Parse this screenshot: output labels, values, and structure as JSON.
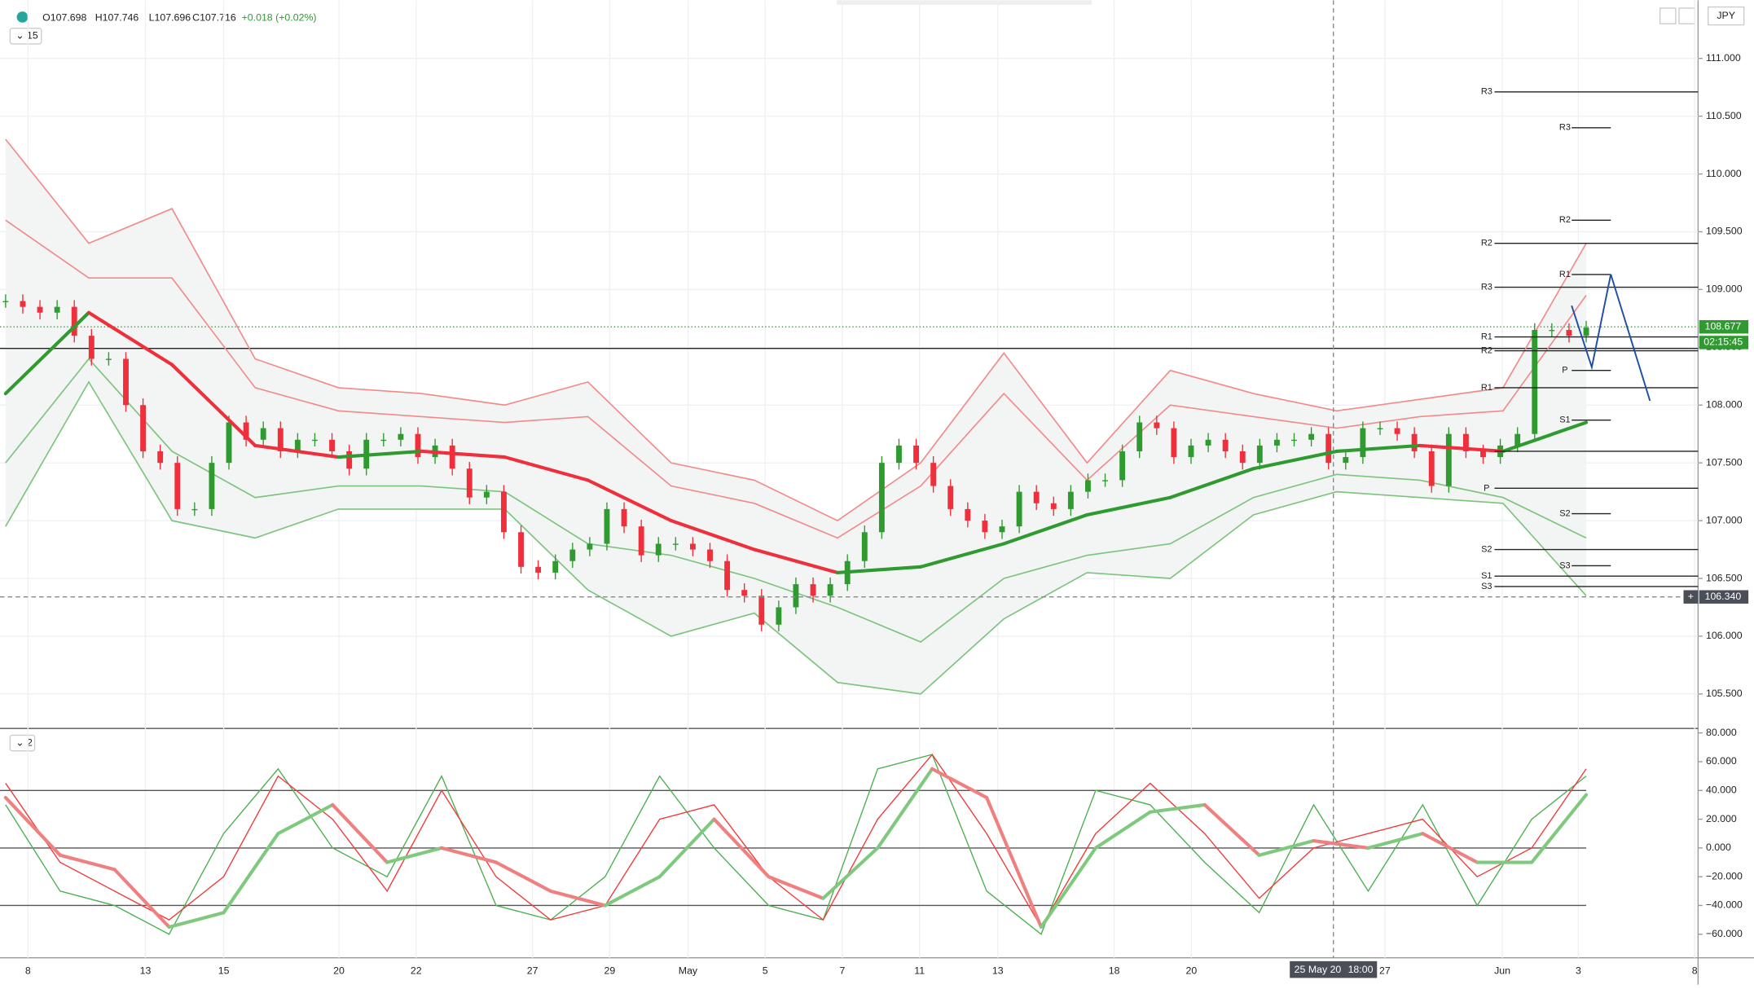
{
  "header": {
    "open": "O107.698",
    "high": "H107.746",
    "low": "L107.696",
    "close": "C107.716",
    "change": "+0.018 (+0.02%)",
    "interval": "15",
    "currency": "JPY"
  },
  "price_panel": {
    "ylim": [
      105.211,
      111.503
    ],
    "yticks": [
      {
        "value": 111,
        "label": "111.000"
      },
      {
        "value": 110.5,
        "label": "110.500"
      },
      {
        "value": 110,
        "label": "110.000"
      },
      {
        "value": 109.5,
        "label": "109.500"
      },
      {
        "value": 109,
        "label": "109.000"
      },
      {
        "value": 108.5,
        "label": "108.500"
      },
      {
        "value": 108,
        "label": "108.000"
      },
      {
        "value": 107.5,
        "label": "107.500"
      },
      {
        "value": 107,
        "label": "107.000"
      },
      {
        "value": 106.5,
        "label": "106.500"
      },
      {
        "value": 106,
        "label": "106.000"
      },
      {
        "value": 105.5,
        "label": "105.500"
      }
    ],
    "up_color": "#2f9a2f",
    "down_color": "#ef2f3c",
    "closes": [
      108.9,
      108.85,
      108.8,
      108.85,
      108.6,
      108.4,
      108.4,
      108.0,
      107.6,
      107.5,
      107.1,
      107.1,
      107.5,
      107.85,
      107.7,
      107.8,
      107.6,
      107.7,
      107.7,
      107.6,
      107.45,
      107.7,
      107.7,
      107.75,
      107.55,
      107.65,
      107.45,
      107.2,
      107.25,
      106.9,
      106.6,
      106.55,
      106.65,
      106.75,
      106.8,
      107.1,
      106.95,
      106.7,
      106.8,
      106.8,
      106.75,
      106.65,
      106.4,
      106.35,
      106.1,
      106.25,
      106.45,
      106.35,
      106.45,
      106.65,
      106.9,
      107.5,
      107.65,
      107.5,
      107.3,
      107.1,
      107.0,
      106.9,
      106.95,
      107.25,
      107.15,
      107.1,
      107.25,
      107.35,
      107.35,
      107.6,
      107.85,
      107.8,
      107.55,
      107.65,
      107.7,
      107.6,
      107.5,
      107.65,
      107.7,
      107.7,
      107.75,
      107.5,
      107.55,
      107.8,
      107.8,
      107.75,
      107.6,
      107.3,
      107.75,
      107.6,
      107.55,
      107.65,
      107.75,
      108.65,
      108.65,
      108.6,
      108.67
    ],
    "ma": [
      108.1,
      108.8,
      108.35,
      107.65,
      107.55,
      107.6,
      107.55,
      107.35,
      107.0,
      106.75,
      106.55,
      106.6,
      106.8,
      107.05,
      107.2,
      107.45,
      107.6,
      107.65,
      107.6,
      107.85
    ],
    "upper_outer": [
      110.3,
      109.4,
      109.7,
      108.4,
      108.15,
      108.1,
      108.0,
      108.2,
      107.5,
      107.35,
      107.0,
      107.5,
      108.45,
      107.5,
      108.3,
      108.1,
      107.95,
      108.05,
      108.15,
      109.4
    ],
    "upper_inner": [
      109.6,
      109.1,
      109.1,
      108.15,
      107.95,
      107.9,
      107.85,
      107.9,
      107.3,
      107.15,
      106.85,
      107.3,
      108.1,
      107.35,
      108.0,
      107.9,
      107.8,
      107.9,
      107.95,
      108.95
    ],
    "lower_inner": [
      107.5,
      108.4,
      107.6,
      107.2,
      107.3,
      107.3,
      107.25,
      106.8,
      106.7,
      106.5,
      106.25,
      105.95,
      106.5,
      106.7,
      106.8,
      107.2,
      107.4,
      107.35,
      107.2,
      106.85
    ],
    "lower_outer": [
      106.95,
      108.2,
      107.0,
      106.85,
      107.1,
      107.1,
      107.1,
      106.4,
      106.0,
      106.2,
      105.6,
      105.5,
      106.15,
      106.55,
      106.5,
      107.05,
      107.25,
      107.2,
      107.15,
      106.35
    ],
    "pivots_long": [
      {
        "label": "R3",
        "value": 110.71
      },
      {
        "label": "R2",
        "value": 109.4
      },
      {
        "label": "R3",
        "value": 109.02
      },
      {
        "label": "R1",
        "value": 108.59
      },
      {
        "label": "R2",
        "value": 108.47
      },
      {
        "label": "R1",
        "value": 108.15
      },
      {
        "label": null,
        "value": 107.6
      },
      {
        "label": "P",
        "value": 107.28
      },
      {
        "label": "S2",
        "value": 106.75
      },
      {
        "label": "S1",
        "value": 106.52
      },
      {
        "label": "S3",
        "value": 106.43
      }
    ],
    "pivots_short": [
      {
        "label": "R3",
        "value": 110.4
      },
      {
        "label": "R2",
        "value": 109.6
      },
      {
        "label": "R1",
        "value": 109.13
      },
      {
        "label": "P",
        "value": 108.3
      },
      {
        "label": "S1",
        "value": 107.87
      },
      {
        "label": "S2",
        "value": 107.06
      },
      {
        "label": "S3",
        "value": 106.61
      }
    ],
    "hline": 108.49,
    "last_price": {
      "value": 108.677,
      "label": "108.677"
    },
    "countdown": "02:15:45",
    "crosshair_price": {
      "value": 106.34,
      "label": "106.340"
    }
  },
  "osc_panel": {
    "label": "2",
    "ylim": [
      -75.6,
      82.3
    ],
    "yticks": [
      {
        "value": 80,
        "label": "80.000"
      },
      {
        "value": 60,
        "label": "60.000"
      },
      {
        "value": 40,
        "label": "40.000"
      },
      {
        "value": 20,
        "label": "20.000"
      },
      {
        "value": 0,
        "label": "0.000"
      },
      {
        "value": -20,
        "label": "−20.000"
      },
      {
        "value": -40,
        "label": "−40.000"
      },
      {
        "value": -60,
        "label": "−60.000"
      }
    ],
    "levels": [
      40,
      0,
      -40
    ],
    "main": [
      35,
      -5,
      -15,
      -55,
      -45,
      10,
      30,
      -10,
      0,
      -10,
      -30,
      -40,
      -20,
      20,
      -20,
      -35,
      0,
      55,
      35,
      -55,
      0,
      25,
      30,
      -5,
      5,
      0,
      10,
      -10,
      -10,
      37
    ],
    "fast": [
      30,
      -30,
      -40,
      -60,
      10,
      55,
      0,
      -20,
      50,
      -40,
      -50,
      -20,
      50,
      0,
      -40,
      -50,
      55,
      65,
      -30,
      -60,
      40,
      30,
      -10,
      -45,
      30,
      -30,
      30,
      -40,
      20,
      50
    ],
    "slow": [
      45,
      -10,
      -30,
      -50,
      -20,
      50,
      20,
      -30,
      40,
      -20,
      -50,
      -40,
      20,
      30,
      -20,
      -50,
      20,
      65,
      10,
      -55,
      10,
      45,
      10,
      -35,
      0,
      10,
      20,
      -20,
      0,
      55
    ]
  },
  "time_axis": {
    "labels": [
      "8",
      "13",
      "15",
      "20",
      "22",
      "27",
      "29",
      "May",
      "5",
      "7",
      "11",
      "13",
      "18",
      "20",
      "27",
      "Jun",
      "3",
      "8"
    ],
    "crosshair_date": "25 May 20",
    "crosshair_time": "18:00"
  }
}
